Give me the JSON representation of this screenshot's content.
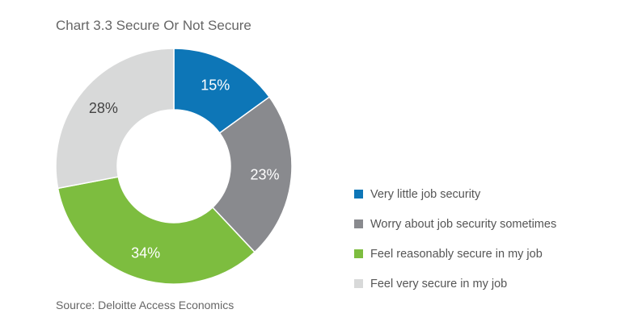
{
  "title": "Chart 3.3 Secure Or Not Secure",
  "source": "Source: Deloitte Access Economics",
  "chart_data": {
    "type": "pie",
    "style": "donut",
    "title": "Chart 3.3 Secure Or Not Secure",
    "legend": "right",
    "slices": [
      {
        "name": "Very little job security",
        "value": 15,
        "label": "15%",
        "color": "#0d76b7",
        "label_color": "#ffffff"
      },
      {
        "name": "Worry about job security sometimes",
        "value": 23,
        "label": "23%",
        "color": "#898a8e",
        "label_color": "#ffffff"
      },
      {
        "name": "Feel reasonably secure in my job",
        "value": 34,
        "label": "34%",
        "color": "#7dbd3f",
        "label_color": "#ffffff"
      },
      {
        "name": "Feel very secure in my job",
        "value": 28,
        "label": "28%",
        "color": "#d8d9d9",
        "label_color": "#444444"
      }
    ]
  }
}
